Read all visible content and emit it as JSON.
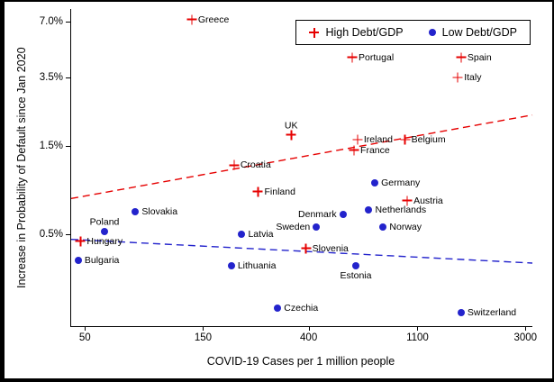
{
  "figure": {
    "background": "#ffffff",
    "frame_color": "#000000"
  },
  "chart_data": {
    "type": "scatter",
    "title": "",
    "xlabel": "COVID-19 Cases per 1 million people",
    "ylabel": "Increase in Probability of Default since Jan 2020",
    "x_scale": "log",
    "y_scale": "log",
    "x_range": [
      44,
      3200
    ],
    "y_range": [
      0.16,
      8.2
    ],
    "grid": false,
    "x_ticks": [
      {
        "value": 50,
        "label": "50"
      },
      {
        "value": 150,
        "label": "150"
      },
      {
        "value": 400,
        "label": "400"
      },
      {
        "value": 1100,
        "label": "1100"
      },
      {
        "value": 3000,
        "label": "3000"
      }
    ],
    "y_ticks": [
      {
        "value": 0.5,
        "label": "0.5%"
      },
      {
        "value": 1.5,
        "label": "1.5%"
      },
      {
        "value": 3.5,
        "label": "3.5%"
      },
      {
        "value": 7.0,
        "label": "7.0%"
      }
    ],
    "legend": {
      "position": "top-right",
      "items": [
        {
          "label": "High Debt/GDP",
          "marker": "plus",
          "color": "#e60000"
        },
        {
          "label": "Low Debt/GDP",
          "marker": "circle",
          "color": "#2323cc"
        }
      ]
    },
    "series": [
      {
        "name": "High Debt/GDP",
        "marker": "plus",
        "color": "#e60000",
        "points": [
          {
            "label": "Greece",
            "x": 135,
            "y": 7.2,
            "label_pos": "right"
          },
          {
            "label": "Portugal",
            "x": 600,
            "y": 4.5,
            "label_pos": "right"
          },
          {
            "label": "Spain",
            "x": 1650,
            "y": 4.5,
            "label_pos": "right"
          },
          {
            "label": "Italy",
            "x": 1600,
            "y": 3.5,
            "label_pos": "right"
          },
          {
            "label": "UK",
            "x": 340,
            "y": 1.72,
            "label_pos": "above"
          },
          {
            "label": "Ireland",
            "x": 630,
            "y": 1.62,
            "label_pos": "right"
          },
          {
            "label": "Belgium",
            "x": 980,
            "y": 1.62,
            "label_pos": "right"
          },
          {
            "label": "France",
            "x": 610,
            "y": 1.42,
            "label_pos": "right"
          },
          {
            "label": "Croatia",
            "x": 200,
            "y": 1.18,
            "label_pos": "right"
          },
          {
            "label": "Finland",
            "x": 250,
            "y": 0.85,
            "label_pos": "right"
          },
          {
            "label": "Austria",
            "x": 1000,
            "y": 0.76,
            "label_pos": "right"
          },
          {
            "label": "Slovenia",
            "x": 390,
            "y": 0.42,
            "label_pos": "right"
          },
          {
            "label": "Hungary",
            "x": 48,
            "y": 0.46,
            "label_pos": "right"
          }
        ]
      },
      {
        "name": "Low Debt/GDP",
        "marker": "circle",
        "color": "#2323cc",
        "points": [
          {
            "label": "Germany",
            "x": 740,
            "y": 0.95,
            "label_pos": "right"
          },
          {
            "label": "Netherlands",
            "x": 700,
            "y": 0.68,
            "label_pos": "right"
          },
          {
            "label": "Denmark",
            "x": 550,
            "y": 0.64,
            "label_pos": "left"
          },
          {
            "label": "Sweden",
            "x": 430,
            "y": 0.55,
            "label_pos": "left"
          },
          {
            "label": "Norway",
            "x": 800,
            "y": 0.55,
            "label_pos": "right"
          },
          {
            "label": "Slovakia",
            "x": 80,
            "y": 0.66,
            "label_pos": "right"
          },
          {
            "label": "Poland",
            "x": 60,
            "y": 0.52,
            "label_pos": "above"
          },
          {
            "label": "Bulgaria",
            "x": 47,
            "y": 0.36,
            "label_pos": "right"
          },
          {
            "label": "Latvia",
            "x": 215,
            "y": 0.5,
            "label_pos": "right"
          },
          {
            "label": "Lithuania",
            "x": 195,
            "y": 0.34,
            "label_pos": "right"
          },
          {
            "label": "Estonia",
            "x": 620,
            "y": 0.34,
            "label_pos": "below"
          },
          {
            "label": "Czechia",
            "x": 300,
            "y": 0.2,
            "label_pos": "right"
          },
          {
            "label": "Switzerland",
            "x": 1650,
            "y": 0.19,
            "label_pos": "right"
          }
        ]
      }
    ],
    "trend_lines": [
      {
        "id": "high-debt",
        "color": "#e60000",
        "style": "dashed",
        "x1": 44,
        "y1": 0.78,
        "x2": 3200,
        "y2": 2.2
      },
      {
        "id": "low-debt",
        "color": "#2323cc",
        "style": "dashed",
        "x1": 44,
        "y1": 0.47,
        "x2": 3200,
        "y2": 0.35
      }
    ]
  }
}
